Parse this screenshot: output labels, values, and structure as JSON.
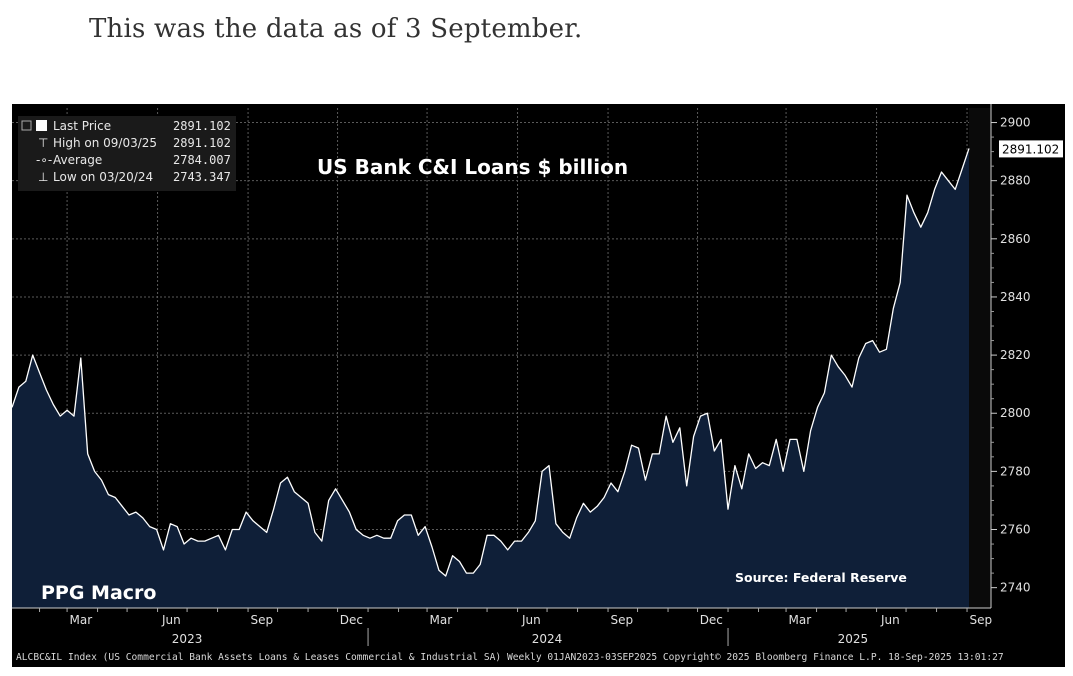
{
  "caption": "This was the data as of 3 September.",
  "chart_data": {
    "type": "area",
    "title": "US Bank C&I Loans $ billion",
    "ylabel": "",
    "xlabel": "",
    "ylim": [
      2733,
      2905
    ],
    "y_ticks": [
      "2900",
      "2880",
      "2860",
      "2840",
      "2820",
      "2800",
      "2780",
      "2760",
      "2740"
    ],
    "x_month_labels": [
      "Mar",
      "Jun",
      "Sep",
      "Dec",
      "Mar",
      "Jun",
      "Sep",
      "Dec",
      "Mar",
      "Jun",
      "Sep"
    ],
    "x_year_labels": [
      "2023",
      "2024",
      "2025"
    ],
    "frequency": "Weekly",
    "start_date": "2023-01-04",
    "end_date": "2025-09-03",
    "series": [
      {
        "name": "Last Price",
        "color": "#ffffff",
        "fill": "#0f1f38",
        "values": [
          2802,
          2809,
          2811,
          2820,
          2814,
          2808,
          2803,
          2799,
          2801,
          2799,
          2819,
          2786,
          2780,
          2777,
          2772,
          2771,
          2768,
          2765,
          2766,
          2764,
          2761,
          2760,
          2753,
          2762,
          2761,
          2755,
          2757,
          2756,
          2756,
          2757,
          2758,
          2753,
          2760,
          2760,
          2766,
          2763,
          2761,
          2759,
          2767,
          2776,
          2778,
          2773,
          2771,
          2769,
          2759,
          2756,
          2770,
          2774,
          2770,
          2766,
          2760,
          2758,
          2757,
          2758,
          2757,
          2757,
          2763,
          2765,
          2765,
          2758,
          2761,
          2754,
          2746,
          2744,
          2751,
          2749,
          2745,
          2745,
          2748,
          2758,
          2758,
          2756,
          2753,
          2756,
          2756,
          2759,
          2763,
          2780,
          2782,
          2762,
          2759,
          2757,
          2764,
          2769,
          2766,
          2768,
          2771,
          2776,
          2773,
          2780,
          2789,
          2788,
          2777,
          2786,
          2786,
          2799,
          2790,
          2795,
          2775,
          2792,
          2799,
          2800,
          2787,
          2791,
          2767,
          2782,
          2774,
          2786,
          2781,
          2783,
          2782,
          2791,
          2780,
          2791,
          2791,
          2780,
          2794,
          2802,
          2807,
          2820,
          2816,
          2813,
          2809,
          2819,
          2824,
          2825,
          2821,
          2822,
          2836,
          2845,
          2875,
          2869,
          2864,
          2869,
          2877,
          2883,
          2880,
          2877,
          2884,
          2891.102
        ]
      }
    ],
    "legend": {
      "placement": "top-left",
      "rows": [
        {
          "label": "Last Price",
          "value": "2891.102"
        },
        {
          "label": "High on 09/03/25",
          "value": "2891.102"
        },
        {
          "label": "Average",
          "value": "2784.007"
        },
        {
          "label": "Low on 03/20/24",
          "value": "2743.347"
        }
      ]
    },
    "last_value_label": "2891.102",
    "annotations": {
      "brand": "PPG Macro",
      "source": "Source: Federal Reserve"
    },
    "footer": "ALCBC&IL Index (US Commercial Bank Assets Loans & Leases Commercial & Industrial SA)  Weekly 01JAN2023-03SEP2025  Copyright© 2025 Bloomberg Finance L.P.  18-Sep-2025 13:01:27",
    "grid": true,
    "colors": {
      "background": "#000000",
      "line": "#ffffff",
      "area": "#0f1f38",
      "grid": "#5a5a5a",
      "badge": "#ffffff"
    }
  }
}
